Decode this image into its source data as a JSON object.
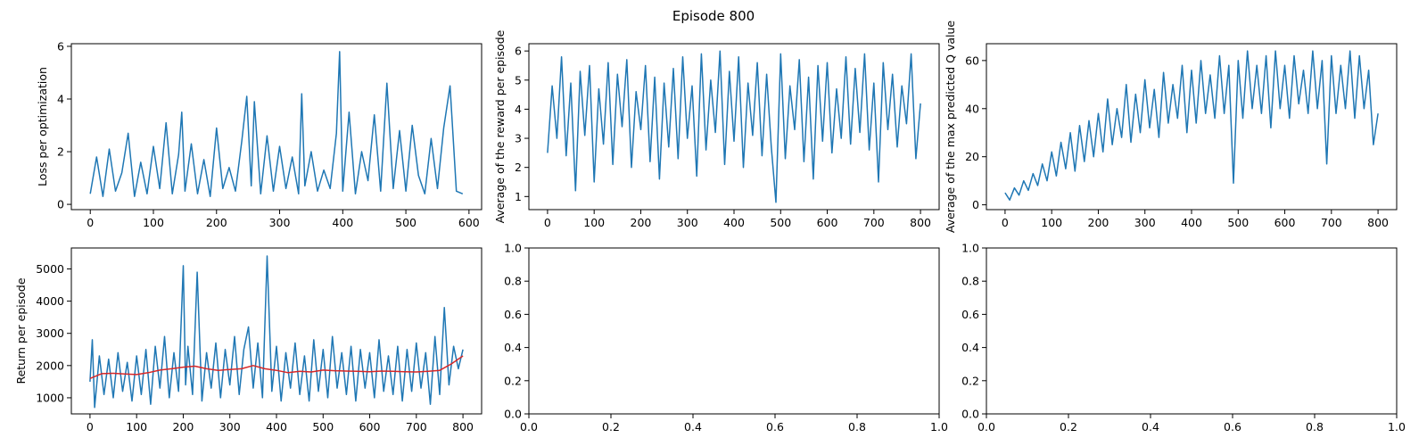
{
  "figure": {
    "suptitle": "Episode 800"
  },
  "colors": {
    "series": "#1f77b4",
    "moving_average": "#d62728",
    "frame": "#000000"
  },
  "chart_data": [
    {
      "id": "loss",
      "type": "line",
      "title": "",
      "xlabel": "",
      "ylabel": "Loss per optimization",
      "xlim": [
        -30,
        620
      ],
      "ylim": [
        -0.2,
        6.1
      ],
      "xticks": [
        0,
        100,
        200,
        300,
        400,
        500,
        600
      ],
      "xtick_labels": [
        "0",
        "100",
        "200",
        "300",
        "400",
        "500",
        "600"
      ],
      "yticks": [
        0,
        2,
        4,
        6
      ],
      "ytick_labels": [
        "0",
        "2",
        "4",
        "6"
      ],
      "grid": false,
      "legend": "none",
      "series": [
        {
          "color": "#1f77b4",
          "x": [
            0,
            10,
            20,
            30,
            40,
            50,
            60,
            70,
            80,
            90,
            100,
            110,
            120,
            130,
            140,
            145,
            150,
            160,
            170,
            180,
            190,
            200,
            210,
            220,
            230,
            240,
            248,
            255,
            260,
            270,
            280,
            290,
            300,
            310,
            320,
            330,
            335,
            340,
            350,
            360,
            370,
            380,
            390,
            395,
            400,
            410,
            420,
            430,
            440,
            450,
            460,
            470,
            480,
            490,
            500,
            510,
            520,
            530,
            540,
            550,
            560,
            570,
            580,
            590
          ],
          "y": [
            0.4,
            1.8,
            0.3,
            2.1,
            0.5,
            1.2,
            2.7,
            0.3,
            1.6,
            0.4,
            2.2,
            0.6,
            3.1,
            0.4,
            1.9,
            3.5,
            0.5,
            2.3,
            0.4,
            1.7,
            0.3,
            2.9,
            0.6,
            1.4,
            0.5,
            2.4,
            4.1,
            0.7,
            3.9,
            0.4,
            2.6,
            0.5,
            2.2,
            0.6,
            1.8,
            0.4,
            4.2,
            0.7,
            2.0,
            0.5,
            1.3,
            0.6,
            2.7,
            5.8,
            0.5,
            3.5,
            0.4,
            2.0,
            0.9,
            3.4,
            0.5,
            4.6,
            0.6,
            2.8,
            0.5,
            3.0,
            1.1,
            0.4,
            2.5,
            0.6,
            2.9,
            4.5,
            0.5,
            0.4
          ]
        }
      ]
    },
    {
      "id": "avg-reward",
      "type": "line",
      "title": "",
      "xlabel": "",
      "ylabel": "Average of the reward per episode",
      "xlim": [
        -40,
        840
      ],
      "ylim": [
        0.55,
        6.25
      ],
      "xticks": [
        0,
        100,
        200,
        300,
        400,
        500,
        600,
        700,
        800
      ],
      "xtick_labels": [
        "0",
        "100",
        "200",
        "300",
        "400",
        "500",
        "600",
        "700",
        "800"
      ],
      "yticks": [
        1,
        2,
        3,
        4,
        5,
        6
      ],
      "ytick_labels": [
        "1",
        "2",
        "3",
        "4",
        "5",
        "6"
      ],
      "grid": false,
      "legend": "none",
      "series": [
        {
          "color": "#1f77b4",
          "x": [
            0,
            10,
            20,
            30,
            40,
            50,
            60,
            70,
            80,
            90,
            100,
            110,
            120,
            130,
            140,
            150,
            160,
            170,
            180,
            190,
            200,
            210,
            220,
            230,
            240,
            250,
            260,
            270,
            280,
            290,
            300,
            310,
            320,
            330,
            340,
            350,
            360,
            370,
            380,
            390,
            400,
            410,
            420,
            430,
            440,
            450,
            460,
            470,
            480,
            490,
            500,
            510,
            520,
            530,
            540,
            550,
            560,
            570,
            580,
            590,
            600,
            610,
            620,
            630,
            640,
            650,
            660,
            670,
            680,
            690,
            700,
            710,
            720,
            730,
            740,
            750,
            760,
            770,
            780,
            790,
            800
          ],
          "y": [
            2.5,
            4.8,
            3.0,
            5.8,
            2.4,
            4.9,
            1.2,
            5.3,
            3.1,
            5.5,
            1.5,
            4.7,
            2.8,
            5.6,
            2.1,
            5.2,
            3.4,
            5.7,
            2.0,
            4.6,
            3.3,
            5.5,
            2.2,
            5.1,
            1.6,
            4.9,
            2.7,
            5.4,
            2.3,
            5.8,
            3.0,
            4.8,
            1.7,
            5.9,
            2.6,
            5.0,
            3.2,
            6.0,
            2.1,
            5.3,
            2.9,
            5.8,
            2.0,
            4.9,
            3.1,
            5.6,
            2.4,
            5.2,
            2.7,
            0.8,
            5.9,
            2.3,
            4.8,
            3.3,
            5.7,
            2.2,
            5.1,
            1.6,
            5.5,
            2.9,
            5.6,
            2.5,
            4.7,
            3.0,
            5.8,
            2.8,
            5.4,
            3.2,
            5.9,
            2.6,
            4.9,
            1.5,
            5.6,
            3.3,
            5.2,
            2.7,
            4.8,
            3.5,
            5.9,
            2.3,
            4.2
          ]
        }
      ]
    },
    {
      "id": "max-q",
      "type": "line",
      "title": "",
      "xlabel": "",
      "ylabel": "Average of the max predicted Q value",
      "xlim": [
        -40,
        840
      ],
      "ylim": [
        -2,
        67
      ],
      "xticks": [
        0,
        100,
        200,
        300,
        400,
        500,
        600,
        700,
        800
      ],
      "xtick_labels": [
        "0",
        "100",
        "200",
        "300",
        "400",
        "500",
        "600",
        "700",
        "800"
      ],
      "yticks": [
        0,
        20,
        40,
        60
      ],
      "ytick_labels": [
        "0",
        "20",
        "40",
        "60"
      ],
      "grid": false,
      "legend": "none",
      "series": [
        {
          "color": "#1f77b4",
          "x": [
            0,
            10,
            20,
            30,
            40,
            50,
            60,
            70,
            80,
            90,
            100,
            110,
            120,
            130,
            140,
            150,
            160,
            170,
            180,
            190,
            200,
            210,
            220,
            230,
            240,
            250,
            260,
            270,
            280,
            290,
            300,
            310,
            320,
            330,
            340,
            350,
            360,
            370,
            380,
            390,
            400,
            410,
            420,
            430,
            440,
            450,
            460,
            470,
            480,
            490,
            500,
            510,
            520,
            530,
            540,
            550,
            560,
            570,
            580,
            590,
            600,
            610,
            620,
            630,
            640,
            650,
            660,
            670,
            680,
            690,
            700,
            710,
            720,
            730,
            740,
            750,
            760,
            770,
            780,
            790,
            800
          ],
          "y": [
            5,
            2,
            7,
            4,
            10,
            6,
            13,
            8,
            17,
            10,
            22,
            12,
            26,
            15,
            30,
            14,
            33,
            18,
            35,
            20,
            38,
            22,
            44,
            25,
            40,
            28,
            50,
            26,
            46,
            30,
            52,
            32,
            48,
            28,
            55,
            34,
            50,
            36,
            58,
            30,
            56,
            34,
            60,
            38,
            54,
            36,
            62,
            38,
            58,
            9,
            60,
            36,
            64,
            40,
            58,
            38,
            62,
            32,
            64,
            40,
            58,
            36,
            62,
            42,
            56,
            38,
            64,
            40,
            60,
            17,
            62,
            38,
            58,
            40,
            64,
            36,
            62,
            40,
            56,
            25,
            38
          ]
        }
      ]
    },
    {
      "id": "return",
      "type": "line",
      "title": "",
      "xlabel": "",
      "ylabel": "Return per episode",
      "xlim": [
        -40,
        840
      ],
      "ylim": [
        500,
        5650
      ],
      "xticks": [
        0,
        100,
        200,
        300,
        400,
        500,
        600,
        700,
        800
      ],
      "xtick_labels": [
        "0",
        "100",
        "200",
        "300",
        "400",
        "500",
        "600",
        "700",
        "800"
      ],
      "yticks": [
        1000,
        2000,
        3000,
        4000,
        5000
      ],
      "ytick_labels": [
        "1000",
        "2000",
        "3000",
        "4000",
        "5000"
      ],
      "grid": false,
      "legend": "none",
      "series": [
        {
          "color": "#1f77b4",
          "x": [
            0,
            5,
            10,
            20,
            30,
            40,
            50,
            60,
            70,
            80,
            90,
            100,
            110,
            120,
            130,
            140,
            150,
            160,
            170,
            180,
            190,
            200,
            205,
            210,
            220,
            230,
            240,
            250,
            260,
            270,
            280,
            290,
            300,
            310,
            320,
            330,
            340,
            350,
            360,
            370,
            380,
            390,
            400,
            410,
            420,
            430,
            440,
            450,
            460,
            470,
            480,
            490,
            500,
            510,
            520,
            530,
            540,
            550,
            560,
            570,
            580,
            590,
            600,
            610,
            620,
            630,
            640,
            650,
            660,
            670,
            680,
            690,
            700,
            710,
            720,
            730,
            740,
            750,
            760,
            770,
            780,
            790,
            800
          ],
          "y": [
            1500,
            2800,
            700,
            2300,
            1100,
            2200,
            1000,
            2400,
            1200,
            2100,
            900,
            2300,
            1100,
            2500,
            800,
            2600,
            1300,
            2900,
            1000,
            2400,
            1200,
            5100,
            1400,
            2600,
            1100,
            4900,
            900,
            2400,
            1300,
            2700,
            1000,
            2500,
            1400,
            2900,
            1100,
            2500,
            3200,
            1300,
            2700,
            1000,
            5400,
            1200,
            2600,
            900,
            2400,
            1300,
            2700,
            1100,
            2300,
            900,
            2800,
            1200,
            2500,
            1000,
            2900,
            1300,
            2400,
            1100,
            2600,
            900,
            2500,
            1300,
            2400,
            1000,
            2800,
            1200,
            2300,
            1100,
            2600,
            900,
            2500,
            1200,
            2700,
            1300,
            2400,
            800,
            2900,
            1100,
            3800,
            1400,
            2600,
            1900,
            2500
          ]
        },
        {
          "color": "#d62728",
          "x": [
            0,
            25,
            50,
            75,
            100,
            125,
            150,
            175,
            200,
            225,
            250,
            275,
            300,
            325,
            350,
            375,
            400,
            425,
            450,
            475,
            500,
            525,
            550,
            575,
            600,
            625,
            650,
            675,
            700,
            725,
            750,
            775,
            800
          ],
          "y": [
            1600,
            1750,
            1760,
            1740,
            1720,
            1780,
            1860,
            1900,
            1950,
            1980,
            1900,
            1850,
            1880,
            1900,
            2000,
            1900,
            1850,
            1780,
            1820,
            1800,
            1860,
            1840,
            1830,
            1820,
            1810,
            1830,
            1820,
            1810,
            1800,
            1820,
            1850,
            2050,
            2300
          ]
        }
      ]
    },
    {
      "id": "empty-1",
      "type": "line",
      "title": "",
      "xlabel": "",
      "ylabel": "",
      "xlim": [
        0,
        1
      ],
      "ylim": [
        0,
        1
      ],
      "xticks": [
        0,
        0.2,
        0.4,
        0.6,
        0.8,
        1.0
      ],
      "xtick_labels": [
        "0.0",
        "0.2",
        "0.4",
        "0.6",
        "0.8",
        "1.0"
      ],
      "yticks": [
        0,
        0.2,
        0.4,
        0.6,
        0.8,
        1.0
      ],
      "ytick_labels": [
        "0.0",
        "0.2",
        "0.4",
        "0.6",
        "0.8",
        "1.0"
      ],
      "grid": false,
      "legend": "none",
      "series": []
    },
    {
      "id": "empty-2",
      "type": "line",
      "title": "",
      "xlabel": "",
      "ylabel": "",
      "xlim": [
        0,
        1
      ],
      "ylim": [
        0,
        1
      ],
      "xticks": [
        0,
        0.2,
        0.4,
        0.6,
        0.8,
        1.0
      ],
      "xtick_labels": [
        "0.0",
        "0.2",
        "0.4",
        "0.6",
        "0.8",
        "1.0"
      ],
      "yticks": [
        0,
        0.2,
        0.4,
        0.6,
        0.8,
        1.0
      ],
      "ytick_labels": [
        "0.0",
        "0.2",
        "0.4",
        "0.6",
        "0.8",
        "1.0"
      ],
      "grid": false,
      "legend": "none",
      "series": []
    }
  ]
}
